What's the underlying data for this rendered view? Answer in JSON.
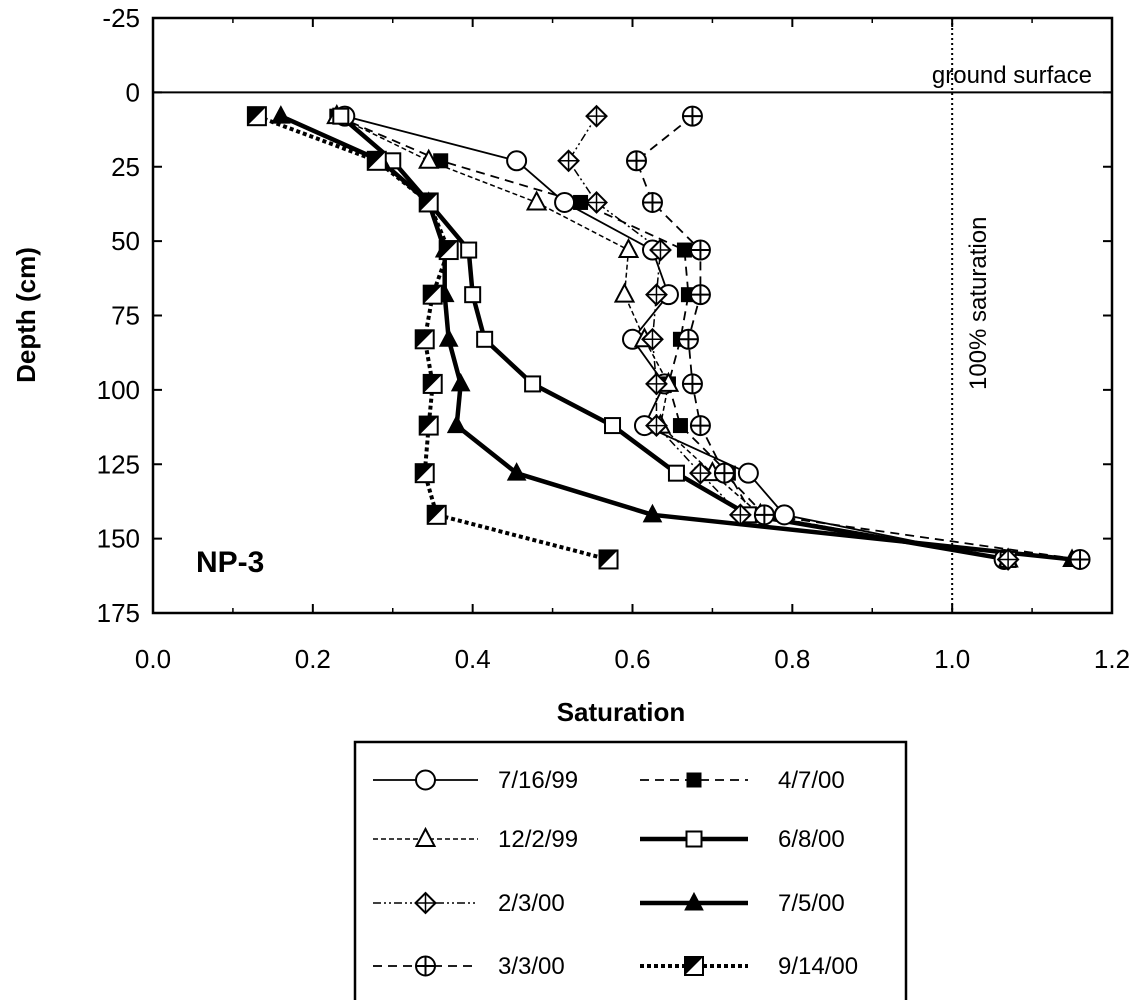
{
  "chart_data": {
    "type": "line",
    "xlabel": "Saturation",
    "ylabel": "Depth (cm)",
    "xlim": [
      0.0,
      1.2
    ],
    "ylim": [
      -25,
      175
    ],
    "y_inverted": true,
    "x_ticks": [
      "0.0",
      "0.2",
      "0.4",
      "0.6",
      "0.8",
      "1.0",
      "1.2"
    ],
    "y_ticks": [
      "-25",
      "0",
      "25",
      "50",
      "75",
      "100",
      "125",
      "150",
      "175"
    ],
    "grid": false,
    "legend_position": "bottom",
    "annotations": {
      "ground_surface_label": "ground surface",
      "ground_surface_depth": 0,
      "saturation_line_label": "100% saturation",
      "saturation_line_value": 1.0,
      "plot_label": "NP-3"
    },
    "series": [
      {
        "name": "7/16/99",
        "marker": "circle-open",
        "line": "solid-thin",
        "x": [
          0.24,
          0.455,
          0.515,
          0.625,
          0.645,
          0.6,
          0.64,
          0.615,
          0.745,
          0.79,
          1.065
        ],
        "y": [
          8,
          23,
          37,
          53,
          68,
          83,
          98,
          112,
          128,
          142,
          157
        ]
      },
      {
        "name": "4/7/00",
        "marker": "square-filled",
        "line": "dashed",
        "x": [
          0.23,
          0.36,
          0.535,
          0.665,
          0.67,
          0.66,
          0.645,
          0.66,
          0.72,
          0.75,
          1.07
        ],
        "y": [
          8,
          23,
          37,
          53,
          68,
          83,
          98,
          112,
          128,
          142,
          157
        ]
      },
      {
        "name": "12/2/99",
        "marker": "triangle-open",
        "line": "dashed-fine",
        "x": [
          0.23,
          0.345,
          0.48,
          0.595,
          0.59,
          0.615,
          0.645,
          0.635,
          0.7,
          0.76,
          1.07
        ],
        "y": [
          8,
          23,
          37,
          53,
          68,
          83,
          98,
          112,
          128,
          142,
          157
        ]
      },
      {
        "name": "6/8/00",
        "marker": "square-open",
        "line": "solid-thick",
        "x": [
          0.235,
          0.3,
          0.345,
          0.395,
          0.4,
          0.415,
          0.475,
          0.575,
          0.655,
          0.745,
          1.07
        ],
        "y": [
          8,
          23,
          37,
          53,
          68,
          83,
          98,
          112,
          128,
          142,
          157
        ]
      },
      {
        "name": "2/3/00",
        "marker": "diamond-cross",
        "line": "dash-dot-dot",
        "x": [
          0.555,
          0.52,
          0.555,
          0.635,
          0.63,
          0.625,
          0.63,
          0.63,
          0.685,
          0.735,
          1.07
        ],
        "y": [
          8,
          23,
          37,
          53,
          68,
          83,
          98,
          112,
          128,
          142,
          157
        ]
      },
      {
        "name": "7/5/00",
        "marker": "triangle-filled",
        "line": "solid-thick",
        "x": [
          0.16,
          0.285,
          0.345,
          0.365,
          0.365,
          0.37,
          0.385,
          0.38,
          0.455,
          0.625,
          1.15
        ],
        "y": [
          8,
          23,
          37,
          53,
          68,
          83,
          98,
          112,
          128,
          142,
          157
        ]
      },
      {
        "name": "3/3/00",
        "marker": "circle-cross",
        "line": "dashed",
        "x": [
          0.675,
          0.605,
          0.625,
          0.685,
          0.685,
          0.67,
          0.675,
          0.685,
          0.715,
          0.765,
          1.16
        ],
        "y": [
          8,
          23,
          37,
          53,
          68,
          83,
          98,
          112,
          128,
          142,
          157
        ]
      },
      {
        "name": "9/14/00",
        "marker": "square-half",
        "line": "dotted-thick",
        "x": [
          0.13,
          0.28,
          0.345,
          0.37,
          0.35,
          0.34,
          0.35,
          0.345,
          0.34,
          0.355,
          0.57
        ],
        "y": [
          8,
          23,
          37,
          53,
          68,
          83,
          98,
          112,
          128,
          142,
          157
        ]
      }
    ]
  }
}
